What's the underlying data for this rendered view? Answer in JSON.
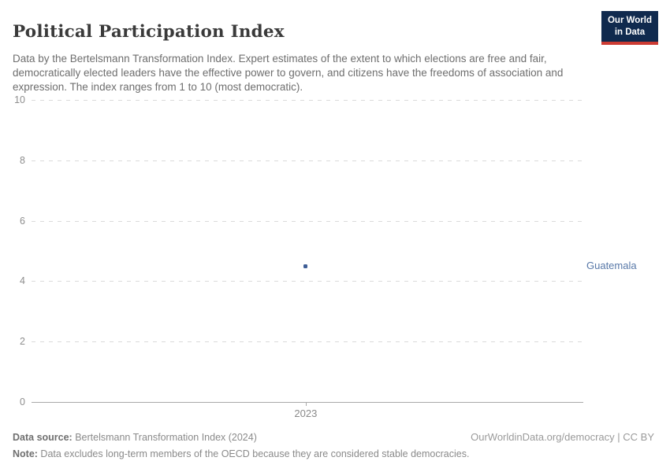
{
  "header": {
    "title": "Political Participation Index",
    "subtitle": "Data by the Bertelsmann Transformation Index. Expert estimates of the extent to which elections are free and fair, democratically elected leaders have the effective power to govern, and citizens have the freedoms of association and expression. The index ranges from 1 to 10 (most democratic).",
    "logo_line1": "Our World",
    "logo_line2": "in Data"
  },
  "chart_data": {
    "type": "scatter",
    "title": "Political Participation Index",
    "x": [
      2023
    ],
    "xticks": [
      2023
    ],
    "series": [
      {
        "name": "Guatemala",
        "values": [
          4.5
        ],
        "color": "#3f5e96",
        "label_color": "#5878a8"
      }
    ],
    "ylim": [
      0,
      10
    ],
    "yticks": [
      0,
      2,
      4,
      6,
      8,
      10
    ],
    "grid": "horizontal-dashed",
    "legend": "entity label right of plot",
    "x_positions_frac": [
      0.497
    ]
  },
  "footer": {
    "datasource_label": "Data source:",
    "datasource_text": " Bertelsmann Transformation Index (2024)",
    "note_label": "Note:",
    "note_text": " Data excludes long-term members of the OECD because they are considered stable democracies.",
    "link": "OurWorldinData.org/democracy | CC BY"
  },
  "colors": {
    "logo_bg": "#102a4e",
    "logo_bar": "#cc3b33",
    "gridline": "#dadada",
    "axis": "#a9a9a9",
    "point": "#3f5e96",
    "entity_label": "#5878a8"
  }
}
